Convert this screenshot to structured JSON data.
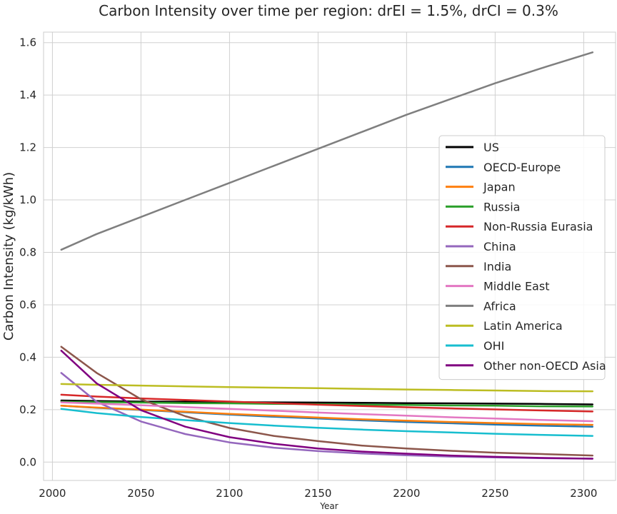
{
  "chart_data": {
    "type": "line",
    "title": "Carbon Intensity over time per region: drEI = 1.5%, drCI = 0.3%",
    "xlabel": "Year",
    "ylabel": "Carbon Intensity (kg/kWh)",
    "xlim": [
      1995,
      2318
    ],
    "ylim": [
      -0.07,
      1.64
    ],
    "xticks": [
      2000,
      2050,
      2100,
      2150,
      2200,
      2250,
      2300
    ],
    "yticks": [
      0.0,
      0.2,
      0.4,
      0.6,
      0.8,
      1.0,
      1.2,
      1.4,
      1.6
    ],
    "grid": true,
    "legend_position": "center-right",
    "x": [
      2005,
      2025,
      2050,
      2075,
      2100,
      2125,
      2150,
      2175,
      2200,
      2225,
      2250,
      2275,
      2305
    ],
    "series": [
      {
        "name": "US",
        "color": "#000000",
        "values": [
          0.235,
          0.233,
          0.231,
          0.23,
          0.229,
          0.228,
          0.227,
          0.226,
          0.225,
          0.224,
          0.223,
          0.222,
          0.22
        ]
      },
      {
        "name": "OECD-Europe",
        "color": "#1f77b4",
        "values": [
          0.215,
          0.207,
          0.199,
          0.19,
          0.181,
          0.173,
          0.166,
          0.159,
          0.153,
          0.148,
          0.143,
          0.139,
          0.135
        ]
      },
      {
        "name": "Japan",
        "color": "#ff7f0e",
        "values": [
          0.215,
          0.208,
          0.2,
          0.192,
          0.184,
          0.177,
          0.17,
          0.163,
          0.158,
          0.153,
          0.149,
          0.145,
          0.142
        ]
      },
      {
        "name": "Russia",
        "color": "#2ca02c",
        "values": [
          0.23,
          0.229,
          0.227,
          0.225,
          0.224,
          0.222,
          0.221,
          0.219,
          0.218,
          0.216,
          0.215,
          0.213,
          0.212
        ]
      },
      {
        "name": "Non-Russia Eurasia",
        "color": "#d62728",
        "values": [
          0.257,
          0.25,
          0.243,
          0.237,
          0.231,
          0.225,
          0.219,
          0.214,
          0.209,
          0.205,
          0.201,
          0.197,
          0.193
        ]
      },
      {
        "name": "China",
        "color": "#9467bd",
        "values": [
          0.34,
          0.23,
          0.155,
          0.107,
          0.075,
          0.055,
          0.042,
          0.033,
          0.026,
          0.021,
          0.018,
          0.015,
          0.013
        ]
      },
      {
        "name": "India",
        "color": "#8c564b",
        "values": [
          0.44,
          0.34,
          0.24,
          0.175,
          0.13,
          0.1,
          0.08,
          0.063,
          0.052,
          0.043,
          0.036,
          0.031,
          0.025
        ]
      },
      {
        "name": "Middle East",
        "color": "#e377c2",
        "values": [
          0.228,
          0.223,
          0.217,
          0.21,
          0.203,
          0.196,
          0.189,
          0.183,
          0.177,
          0.171,
          0.166,
          0.161,
          0.156
        ]
      },
      {
        "name": "Africa",
        "color": "#7f7f7f",
        "values": [
          0.81,
          0.87,
          0.935,
          1.0,
          1.065,
          1.13,
          1.195,
          1.26,
          1.325,
          1.385,
          1.445,
          1.5,
          1.563
        ]
      },
      {
        "name": "Latin America",
        "color": "#bcbd22",
        "values": [
          0.298,
          0.295,
          0.292,
          0.289,
          0.286,
          0.284,
          0.282,
          0.279,
          0.277,
          0.275,
          0.273,
          0.271,
          0.27
        ]
      },
      {
        "name": "OHI",
        "color": "#17becf",
        "values": [
          0.203,
          0.187,
          0.172,
          0.16,
          0.149,
          0.139,
          0.131,
          0.124,
          0.118,
          0.113,
          0.108,
          0.104,
          0.1
        ]
      },
      {
        "name": "Other non-OECD Asia",
        "color": "#800080",
        "values": [
          0.425,
          0.3,
          0.198,
          0.135,
          0.095,
          0.07,
          0.052,
          0.04,
          0.032,
          0.025,
          0.02,
          0.016,
          0.013
        ]
      }
    ]
  }
}
